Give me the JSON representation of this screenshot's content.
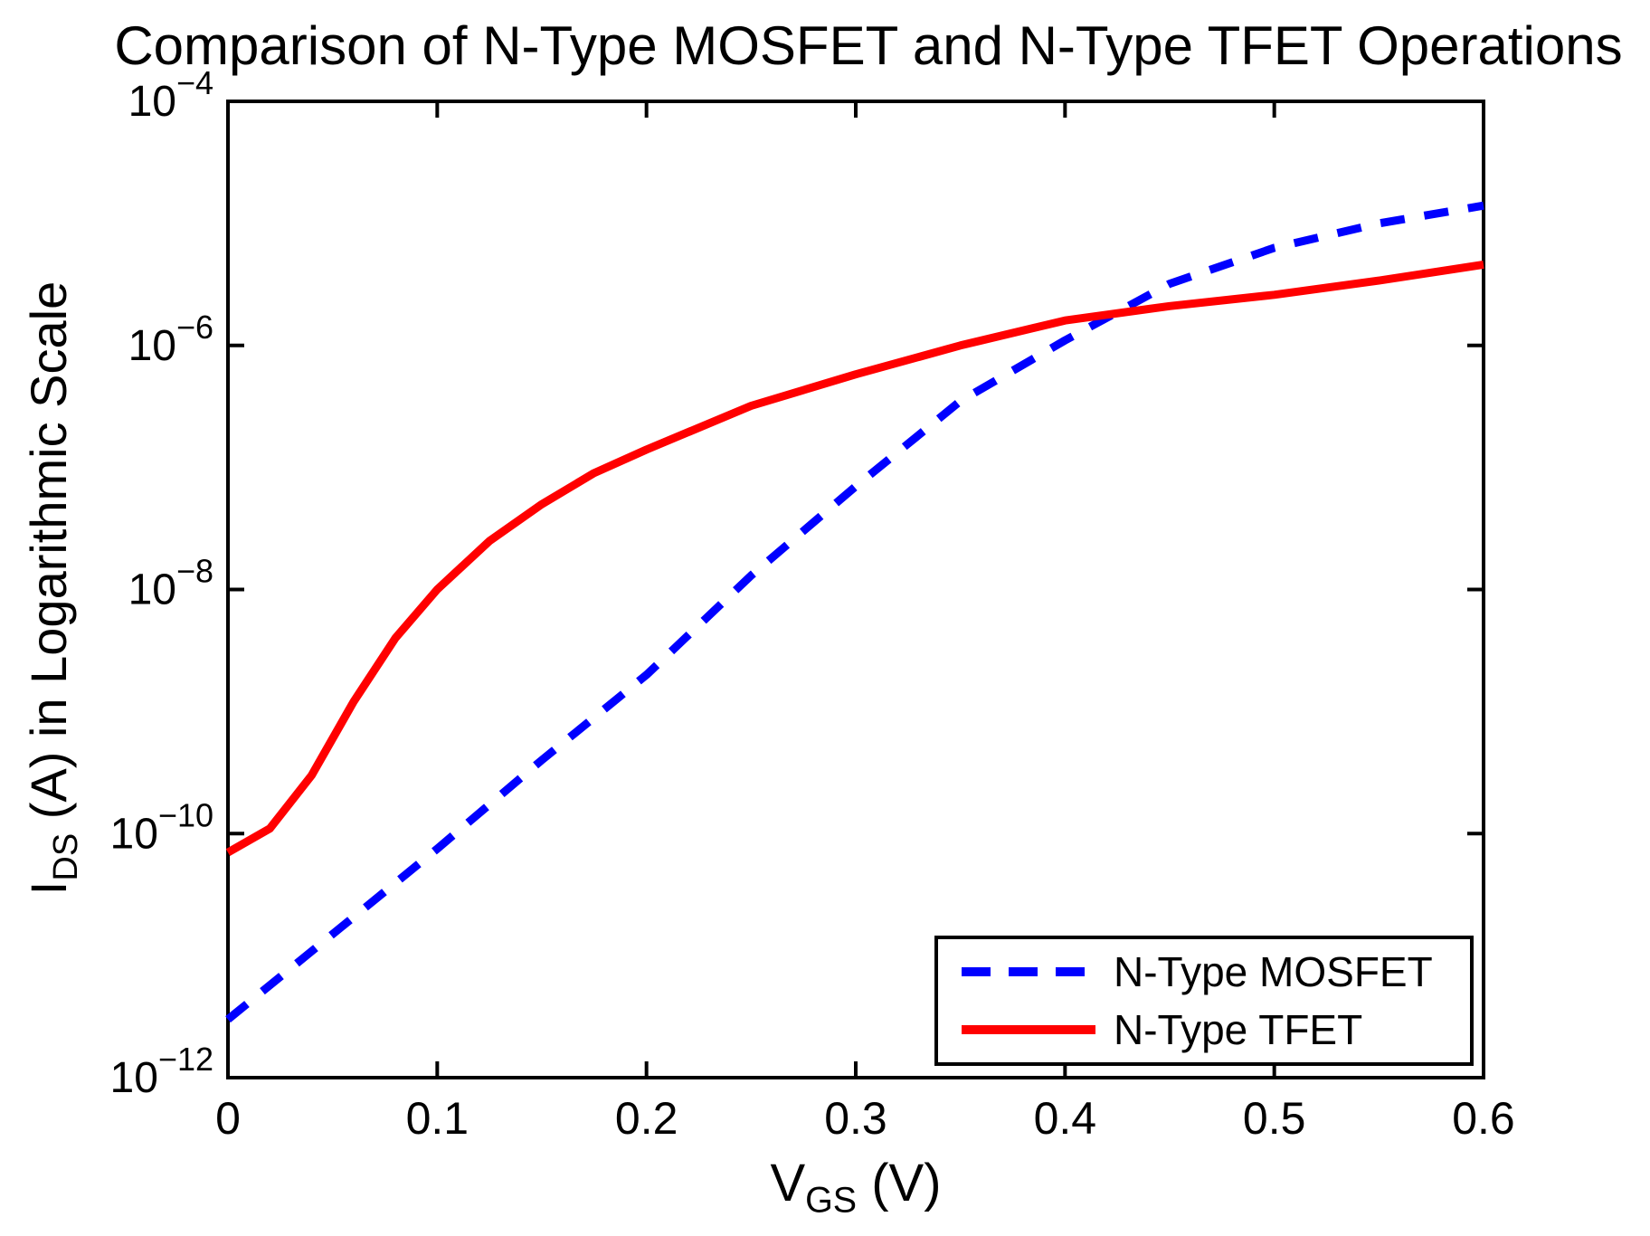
{
  "chart_data": {
    "type": "line",
    "title": "Comparison of N-Type MOSFET and N-Type TFET Operations",
    "xlabel": {
      "main": "V",
      "sub": "GS",
      "rest": " (V)"
    },
    "ylabel": {
      "main": "I",
      "sub": "DS",
      "rest": " (A) in Logarithmic Scale"
    },
    "xlim": [
      0,
      0.6
    ],
    "ylim_exponents": [
      -12,
      -4
    ],
    "x_ticks": [
      0,
      0.1,
      0.2,
      0.3,
      0.4,
      0.5,
      0.6
    ],
    "x_tick_labels": [
      "0",
      "0.1",
      "0.2",
      "0.3",
      "0.4",
      "0.5",
      "0.6"
    ],
    "y_tick_exponents": [
      -4,
      -6,
      -8,
      -10,
      -12
    ],
    "grid": false,
    "legend_position": "bottom-right",
    "axis_color": "#000000",
    "series": [
      {
        "name": "N-Type MOSFET",
        "color": "#0000ff",
        "style": "dashed",
        "x": [
          0,
          0.05,
          0.1,
          0.15,
          0.2,
          0.25,
          0.3,
          0.35,
          0.4,
          0.45,
          0.5,
          0.55,
          0.6
        ],
        "y": [
          3e-12,
          1.5e-11,
          7.5e-11,
          4e-10,
          2e-09,
          1.3e-08,
          7e-08,
          3.5e-07,
          1.1e-06,
          3.2e-06,
          6.3e-06,
          1e-05,
          1.4e-05
        ]
      },
      {
        "name": "N-Type TFET",
        "color": "#ff0000",
        "style": "solid",
        "x": [
          0,
          0.02,
          0.04,
          0.06,
          0.08,
          0.1,
          0.125,
          0.15,
          0.175,
          0.2,
          0.25,
          0.3,
          0.35,
          0.4,
          0.45,
          0.5,
          0.55,
          0.6
        ],
        "y": [
          7e-11,
          1.1e-10,
          3e-10,
          1.2e-09,
          4e-09,
          1e-08,
          2.5e-08,
          5e-08,
          9e-08,
          1.4e-07,
          3.2e-07,
          5.8e-07,
          1e-06,
          1.6e-06,
          2.1e-06,
          2.6e-06,
          3.4e-06,
          4.6e-06
        ]
      }
    ]
  }
}
